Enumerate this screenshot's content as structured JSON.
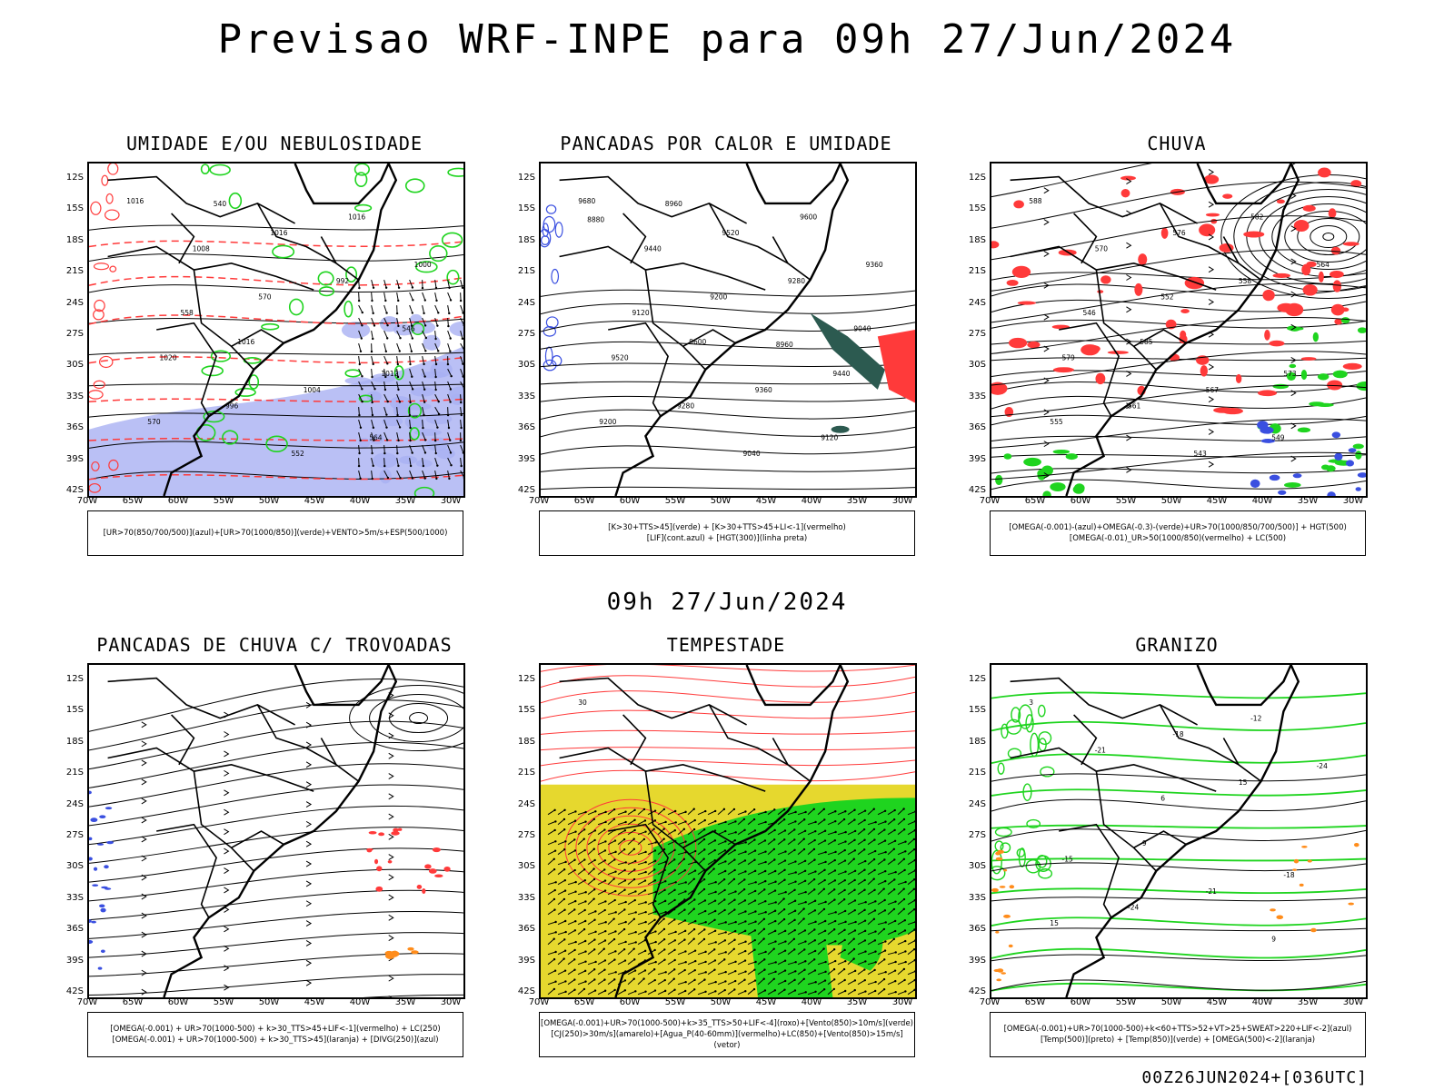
{
  "title": "Previsao WRF-INPE  para 09h 27/Jun/2024",
  "mid_title": "09h 27/Jun/2024",
  "footer": "00Z26JUN2024+[036UTC]",
  "lat_labels": [
    "12S",
    "15S",
    "18S",
    "21S",
    "24S",
    "27S",
    "30S",
    "33S",
    "36S",
    "39S",
    "42S"
  ],
  "lon_labels": [
    "70W",
    "65W",
    "60W",
    "55W",
    "50W",
    "45W",
    "40W",
    "35W",
    "30W"
  ],
  "colors": {
    "frame": "#000000",
    "blue": "#3a4fe0",
    "green": "#1fd41f",
    "red": "#ff3a3a",
    "orange": "#ff8c1a",
    "yellow": "#e6d82e",
    "lightblue": "#a9b0f2"
  },
  "panels": [
    {
      "title": "UMIDADE E/OU NEBULOSIDADE",
      "legend": [
        "[UR>70(850/700/500)](azul)+[UR>70(1000/850)](verde)+VENTO>5m/s+ESP(500/1000)"
      ],
      "labels": [
        "1016",
        "1016",
        "1016",
        "1020",
        "1016",
        "1012",
        "1008",
        "1004",
        "1000",
        "996",
        "992",
        "570",
        "570",
        "564",
        "558",
        "552",
        "546",
        "540"
      ]
    },
    {
      "title": "PANCADAS POR CALOR E UMIDADE",
      "legend": [
        "[K>30+TTS>45](verde) + [K>30+TTS>45+LI<-1](vermelho)",
        "[LIF](cont.azul) + [HGT(300)](linha preta)"
      ],
      "labels": [
        "9680",
        "9600",
        "9600",
        "9520",
        "9520",
        "9440",
        "9440",
        "9360",
        "9360",
        "9280",
        "9280",
        "9200",
        "9200",
        "9120",
        "9120",
        "9040",
        "9040",
        "8960",
        "8960",
        "8880"
      ]
    },
    {
      "title": "CHUVA",
      "legend": [
        "[OMEGA(-0.001)-(azul)+OMEGA(-0.3)-(verde)+UR>70(1000/850/700/500)] + HGT(500)",
        "[OMEGA(-0.01)_UR>50(1000/850)(vermelho) + LC(500)"
      ],
      "labels": [
        "588",
        "585",
        "582",
        "579",
        "576",
        "573",
        "570",
        "567",
        "564",
        "561",
        "558",
        "555",
        "552",
        "549",
        "546",
        "543"
      ]
    },
    {
      "title": "PANCADAS DE CHUVA C/ TROVOADAS",
      "legend": [
        "[OMEGA(-0.001) + UR>70(1000-500) + k>30_TTS>45+LIF<-1](vermelho) + LC(250)",
        "[OMEGA(-0.001) + UR>70(1000-500) + k>30_TTS>45](laranja) + [DIVG(250)](azul)"
      ],
      "labels": []
    },
    {
      "title": "TEMPESTADE",
      "legend": [
        "[OMEGA(-0.001)+UR>70(1000-500)+k>35_TTS>50+LIF<-4](roxo)+[Vento(850)>10m/s](verde)",
        "[CJ(250)>30m/s](amarelo)+[Agua_P(40-60mm)](vermelho)+LC(850)+[Vento(850)>15m/s](vetor)"
      ],
      "labels": [
        "30"
      ]
    },
    {
      "title": "GRANIZO",
      "legend": [
        "[OMEGA(-0.001)+UR>70(1000-500)+k<60+TTS>52+VT>25+SWEAT>220+LIF<-2](azul)",
        "[Temp(500)](preto) + [Temp(850)](verde) + [OMEGA(500)<-2](laranja)"
      ],
      "labels": [
        "3",
        "-9",
        "-12",
        "-15",
        "-18",
        "-18",
        "-21",
        "-21",
        "-24",
        "-24",
        "15",
        "15",
        "6",
        "9"
      ]
    }
  ]
}
